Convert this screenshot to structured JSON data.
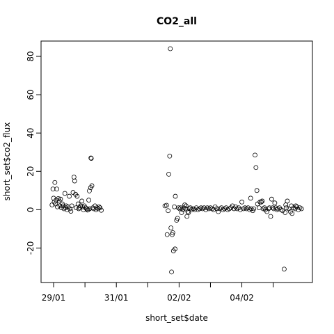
{
  "chart_data": {
    "type": "scatter",
    "title": "CO2_all",
    "xlabel": "short_set$date",
    "ylabel": "short_set$co2_flux",
    "x_ticks": [
      {
        "day": 0,
        "label": "29/01"
      },
      {
        "day": 1,
        "label": ""
      },
      {
        "day": 2,
        "label": "31/01"
      },
      {
        "day": 3,
        "label": ""
      },
      {
        "day": 4,
        "label": "02/02"
      },
      {
        "day": 5,
        "label": ""
      },
      {
        "day": 6,
        "label": "04/02"
      },
      {
        "day": 7,
        "label": ""
      }
    ],
    "y_ticks": [
      -20,
      0,
      20,
      40,
      60,
      80
    ],
    "xlim": [
      -0.4,
      8.25
    ],
    "ylim": [
      -38,
      88
    ],
    "grid": false,
    "series": [
      {
        "marker": "open-circle",
        "color": "#000000",
        "points": [
          [
            -0.05,
            2.5
          ],
          [
            -0.02,
            10.8
          ],
          [
            0.0,
            6.0
          ],
          [
            0.02,
            4.0
          ],
          [
            0.04,
            14.2
          ],
          [
            0.06,
            3.0
          ],
          [
            0.08,
            5.0
          ],
          [
            0.1,
            10.8
          ],
          [
            0.12,
            1.5
          ],
          [
            0.15,
            5.8
          ],
          [
            0.18,
            4.5
          ],
          [
            0.2,
            2.0
          ],
          [
            0.22,
            5.5
          ],
          [
            0.25,
            1.0
          ],
          [
            0.28,
            3.0
          ],
          [
            0.3,
            2.0
          ],
          [
            0.33,
            0.5
          ],
          [
            0.36,
            8.5
          ],
          [
            0.38,
            1.0
          ],
          [
            0.4,
            2.0
          ],
          [
            0.43,
            0.0
          ],
          [
            0.46,
            1.5
          ],
          [
            0.5,
            7.0
          ],
          [
            0.52,
            0.5
          ],
          [
            0.55,
            -0.8
          ],
          [
            0.58,
            2.0
          ],
          [
            0.62,
            9.0
          ],
          [
            0.65,
            17.0
          ],
          [
            0.67,
            15.0
          ],
          [
            0.7,
            8.0
          ],
          [
            0.72,
            1.0
          ],
          [
            0.75,
            7.0
          ],
          [
            0.78,
            3.0
          ],
          [
            0.8,
            0.5
          ],
          [
            0.83,
            1.0
          ],
          [
            0.86,
            2.0
          ],
          [
            0.9,
            4.5
          ],
          [
            0.92,
            1.5
          ],
          [
            0.95,
            0.0
          ],
          [
            0.98,
            2.0
          ],
          [
            1.02,
            1.0
          ],
          [
            1.05,
            0.5
          ],
          [
            1.08,
            -0.2
          ],
          [
            1.1,
            0.0
          ],
          [
            1.12,
            5.0
          ],
          [
            1.14,
            9.8
          ],
          [
            1.15,
            0.5
          ],
          [
            1.18,
            11.5
          ],
          [
            1.19,
            27.0
          ],
          [
            1.2,
            26.8
          ],
          [
            1.22,
            12.5
          ],
          [
            1.25,
            1.0
          ],
          [
            1.28,
            0.5
          ],
          [
            1.32,
            2.0
          ],
          [
            1.35,
            0.0
          ],
          [
            1.38,
            1.0
          ],
          [
            1.42,
            0.5
          ],
          [
            1.45,
            1.5
          ],
          [
            1.48,
            1.0
          ],
          [
            1.52,
            -0.3
          ],
          [
            3.55,
            2.0
          ],
          [
            3.6,
            2.3
          ],
          [
            3.62,
            -13.0
          ],
          [
            3.65,
            -0.5
          ],
          [
            3.67,
            18.5
          ],
          [
            3.7,
            28.0
          ],
          [
            3.72,
            84.0
          ],
          [
            3.74,
            -9.5
          ],
          [
            3.76,
            -32.5
          ],
          [
            3.78,
            -13.0
          ],
          [
            3.8,
            -12.0
          ],
          [
            3.82,
            -21.5
          ],
          [
            3.85,
            1.5
          ],
          [
            3.87,
            -20.5
          ],
          [
            3.88,
            7.0
          ],
          [
            3.92,
            -5.5
          ],
          [
            3.95,
            -4.5
          ],
          [
            3.98,
            1.0
          ],
          [
            4.02,
            0.5
          ],
          [
            4.05,
            1.0
          ],
          [
            4.08,
            -1.5
          ],
          [
            4.12,
            0.0
          ],
          [
            4.15,
            1.0
          ],
          [
            4.18,
            2.5
          ],
          [
            4.2,
            0.5
          ],
          [
            4.22,
            2.0
          ],
          [
            4.25,
            -3.5
          ],
          [
            4.28,
            -1.0
          ],
          [
            4.3,
            -1.5
          ],
          [
            4.33,
            0.5
          ],
          [
            4.36,
            1.0
          ],
          [
            4.4,
            0.0
          ],
          [
            4.45,
            0.5
          ],
          [
            4.5,
            0.0
          ],
          [
            4.55,
            1.0
          ],
          [
            4.6,
            0.0
          ],
          [
            4.65,
            0.5
          ],
          [
            4.7,
            1.0
          ],
          [
            4.75,
            0.5
          ],
          [
            4.8,
            1.0
          ],
          [
            4.85,
            0.0
          ],
          [
            4.9,
            1.0
          ],
          [
            4.95,
            0.5
          ],
          [
            5.0,
            1.0
          ],
          [
            5.05,
            0.5
          ],
          [
            5.1,
            0.0
          ],
          [
            5.15,
            1.5
          ],
          [
            5.2,
            0.5
          ],
          [
            5.25,
            -1.0
          ],
          [
            5.3,
            0.5
          ],
          [
            5.35,
            1.0
          ],
          [
            5.4,
            0.0
          ],
          [
            5.45,
            0.5
          ],
          [
            5.5,
            1.0
          ],
          [
            5.55,
            0.0
          ],
          [
            5.6,
            0.5
          ],
          [
            5.65,
            1.0
          ],
          [
            5.7,
            2.0
          ],
          [
            5.75,
            0.5
          ],
          [
            5.8,
            1.5
          ],
          [
            5.85,
            0.5
          ],
          [
            5.9,
            1.0
          ],
          [
            5.95,
            0.0
          ],
          [
            6.0,
            4.0
          ],
          [
            6.05,
            0.5
          ],
          [
            6.1,
            1.0
          ],
          [
            6.15,
            0.5
          ],
          [
            6.2,
            1.0
          ],
          [
            6.25,
            0.0
          ],
          [
            6.28,
            6.0
          ],
          [
            6.3,
            0.5
          ],
          [
            6.35,
            -0.5
          ],
          [
            6.38,
            0.5
          ],
          [
            6.42,
            28.5
          ],
          [
            6.45,
            22.0
          ],
          [
            6.48,
            10.0
          ],
          [
            6.5,
            3.0
          ],
          [
            6.55,
            1.0
          ],
          [
            6.58,
            4.0
          ],
          [
            6.62,
            4.0
          ],
          [
            6.65,
            4.5
          ],
          [
            6.68,
            0.5
          ],
          [
            6.72,
            1.0
          ],
          [
            6.75,
            0.0
          ],
          [
            6.8,
            -1.0
          ],
          [
            6.85,
            0.5
          ],
          [
            6.88,
            1.0
          ],
          [
            6.92,
            -3.5
          ],
          [
            6.95,
            5.5
          ],
          [
            6.98,
            1.0
          ],
          [
            7.02,
            0.5
          ],
          [
            7.05,
            3.5
          ],
          [
            7.08,
            1.0
          ],
          [
            7.12,
            0.0
          ],
          [
            7.15,
            0.5
          ],
          [
            7.2,
            1.0
          ],
          [
            7.25,
            0.0
          ],
          [
            7.3,
            -0.5
          ],
          [
            7.35,
            -31.0
          ],
          [
            7.38,
            -1.5
          ],
          [
            7.4,
            2.5
          ],
          [
            7.42,
            1.0
          ],
          [
            7.45,
            4.5
          ],
          [
            7.5,
            0.5
          ],
          [
            7.55,
            -1.0
          ],
          [
            7.58,
            2.0
          ],
          [
            7.6,
            -2.0
          ],
          [
            7.65,
            1.0
          ],
          [
            7.7,
            0.5
          ],
          [
            7.72,
            2.0
          ],
          [
            7.75,
            1.5
          ],
          [
            7.8,
            0.0
          ],
          [
            7.85,
            1.0
          ],
          [
            7.9,
            0.5
          ]
        ]
      }
    ]
  }
}
